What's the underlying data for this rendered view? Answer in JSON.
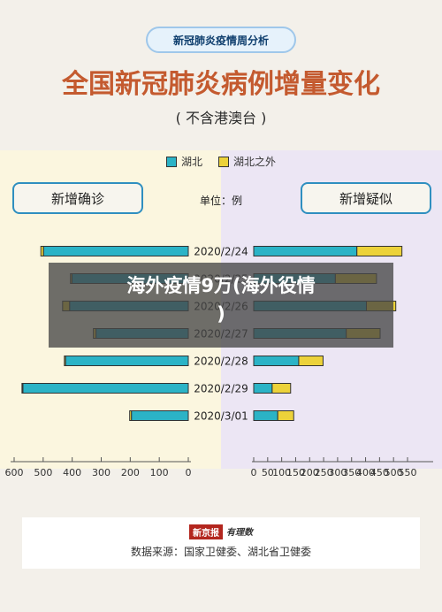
{
  "header": {
    "badge": "新冠肺炎疫情周分析",
    "title": "全国新冠肺炎病例增量变化",
    "subtitle": "( 不含港澳台 )"
  },
  "legend": {
    "hubei": "湖北",
    "outside": "湖北之外"
  },
  "panels": {
    "left_label": "新增确诊",
    "right_label": "新增疑似",
    "unit": "单位：例"
  },
  "overlay": {
    "line1": "海外疫情9万(海外役情",
    "line2": ")"
  },
  "footer": {
    "brand_a": "新京报",
    "brand_b": "有理数",
    "source": "数据来源：国家卫健委、湖北省卫健委"
  },
  "colors": {
    "hubei": "#2bb3c6",
    "outside": "#ecd23a",
    "outline": "#333333"
  },
  "chart_data": [
    {
      "type": "bar",
      "orientation": "horizontal",
      "direction": "right-to-left",
      "categories": [
        "2020/2/24",
        "2020/2/25",
        "2020/2/26",
        "2020/2/27",
        "2020/2/28",
        "2020/2/29",
        "2020/3/01"
      ],
      "series": [
        {
          "name": "湖北",
          "values": [
            499,
            401,
            409,
            318,
            423,
            570,
            196
          ]
        },
        {
          "name": "湖北之外",
          "values": [
            9,
            5,
            24,
            9,
            4,
            3,
            6
          ]
        }
      ],
      "xlim": [
        0,
        600
      ],
      "xticks": [
        600,
        500,
        400,
        300,
        200,
        100,
        0
      ]
    },
    {
      "type": "bar",
      "orientation": "horizontal",
      "direction": "left-to-right",
      "categories": [
        "2020/2/24",
        "2020/2/25",
        "2020/2/26",
        "2020/2/27",
        "2020/2/28",
        "2020/2/29",
        "2020/3/01"
      ],
      "series": [
        {
          "name": "湖北",
          "values": [
            369,
            292,
            403,
            331,
            161,
            66,
            86
          ]
        },
        {
          "name": "湖北之外",
          "values": [
            161,
            147,
            105,
            121,
            87,
            66,
            57
          ]
        }
      ],
      "xlim": [
        0,
        550
      ],
      "xticks": [
        0,
        50,
        100,
        150,
        200,
        250,
        300,
        350,
        400,
        450,
        500,
        550
      ]
    }
  ]
}
